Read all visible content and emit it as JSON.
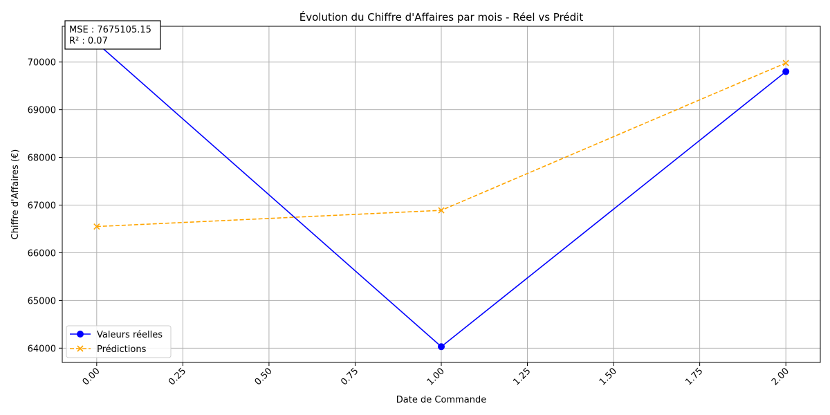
{
  "chart_data": {
    "type": "line",
    "title": "Évolution du Chiffre d'Affaires par mois - Réel vs Prédit",
    "xlabel": "Date de Commande",
    "ylabel": "Chiffre d'Affaires (€)",
    "xlim": [
      -0.1,
      2.1
    ],
    "ylim": [
      63700,
      70750
    ],
    "x_ticks": [
      0.0,
      0.25,
      0.5,
      0.75,
      1.0,
      1.25,
      1.5,
      1.75,
      2.0
    ],
    "x_tick_labels": [
      "0.00",
      "0.25",
      "0.50",
      "0.75",
      "1.00",
      "1.25",
      "1.50",
      "1.75",
      "2.00"
    ],
    "x_tick_rotation": 45,
    "y_ticks": [
      64000,
      65000,
      66000,
      67000,
      68000,
      69000,
      70000
    ],
    "y_tick_labels": [
      "64000",
      "65000",
      "66000",
      "67000",
      "68000",
      "69000",
      "70000"
    ],
    "grid": true,
    "legend_position": "lower-left",
    "x": [
      0,
      1,
      2
    ],
    "series": [
      {
        "name": "Valeurs réelles",
        "values": [
          70400,
          64030,
          69800
        ],
        "color": "#0000ff",
        "marker": "circle",
        "linestyle": "solid"
      },
      {
        "name": "Prédictions",
        "values": [
          66550,
          66890,
          69980
        ],
        "color": "#ffa500",
        "marker": "x",
        "linestyle": "dashed"
      }
    ],
    "annotations": [
      {
        "text": "MSE : 7675105.15"
      },
      {
        "text": "R² : 0.07"
      }
    ]
  }
}
